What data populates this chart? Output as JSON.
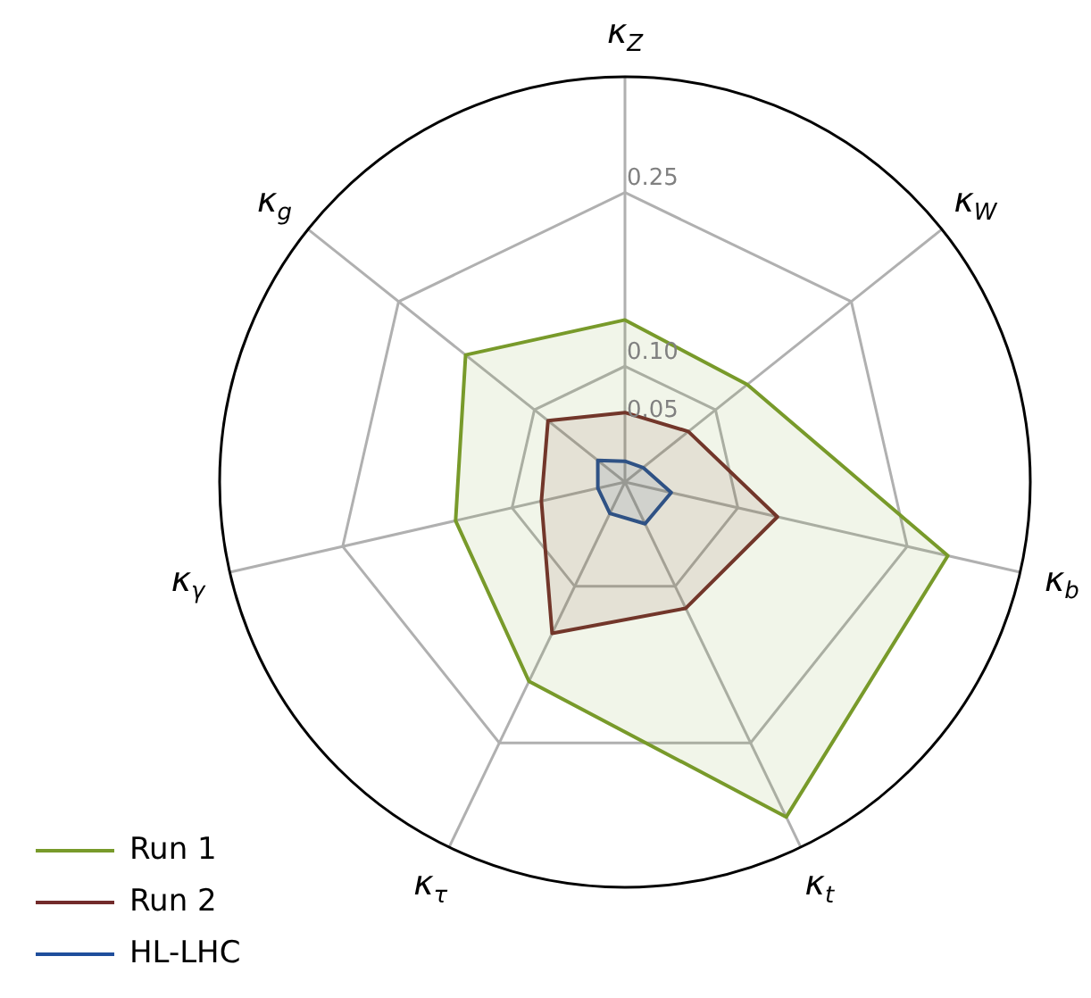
{
  "chart_data": {
    "type": "radar",
    "categories": [
      "κ$_{Z}$",
      "κ$_{W}$",
      "κ$_{b}$",
      "κ$_{t}$",
      "κ$_{τ}$",
      "κ$_{γ}$",
      "κ$_{g}$"
    ],
    "series": [
      {
        "name": "Run 1",
        "color": "#789a2a",
        "values": [
          0.14,
          0.135,
          0.286,
          0.321,
          0.191,
          0.15,
          0.176
        ]
      },
      {
        "name": "Run 2",
        "color": "#722b2b",
        "values": [
          0.06,
          0.07,
          0.135,
          0.121,
          0.145,
          0.074,
          0.085
        ]
      },
      {
        "name": "HL-LHC",
        "color": "#1f4e9c",
        "values": [
          0.018,
          0.02,
          0.041,
          0.04,
          0.03,
          0.024,
          0.03
        ]
      }
    ],
    "ylim": [
      0,
      0.35
    ],
    "yticks": [
      0.05,
      {
        "value": 0.1,
        "label": "0.10"
      },
      0.25
    ],
    "grid": true,
    "legend": "bottom left",
    "marker": "none"
  }
}
